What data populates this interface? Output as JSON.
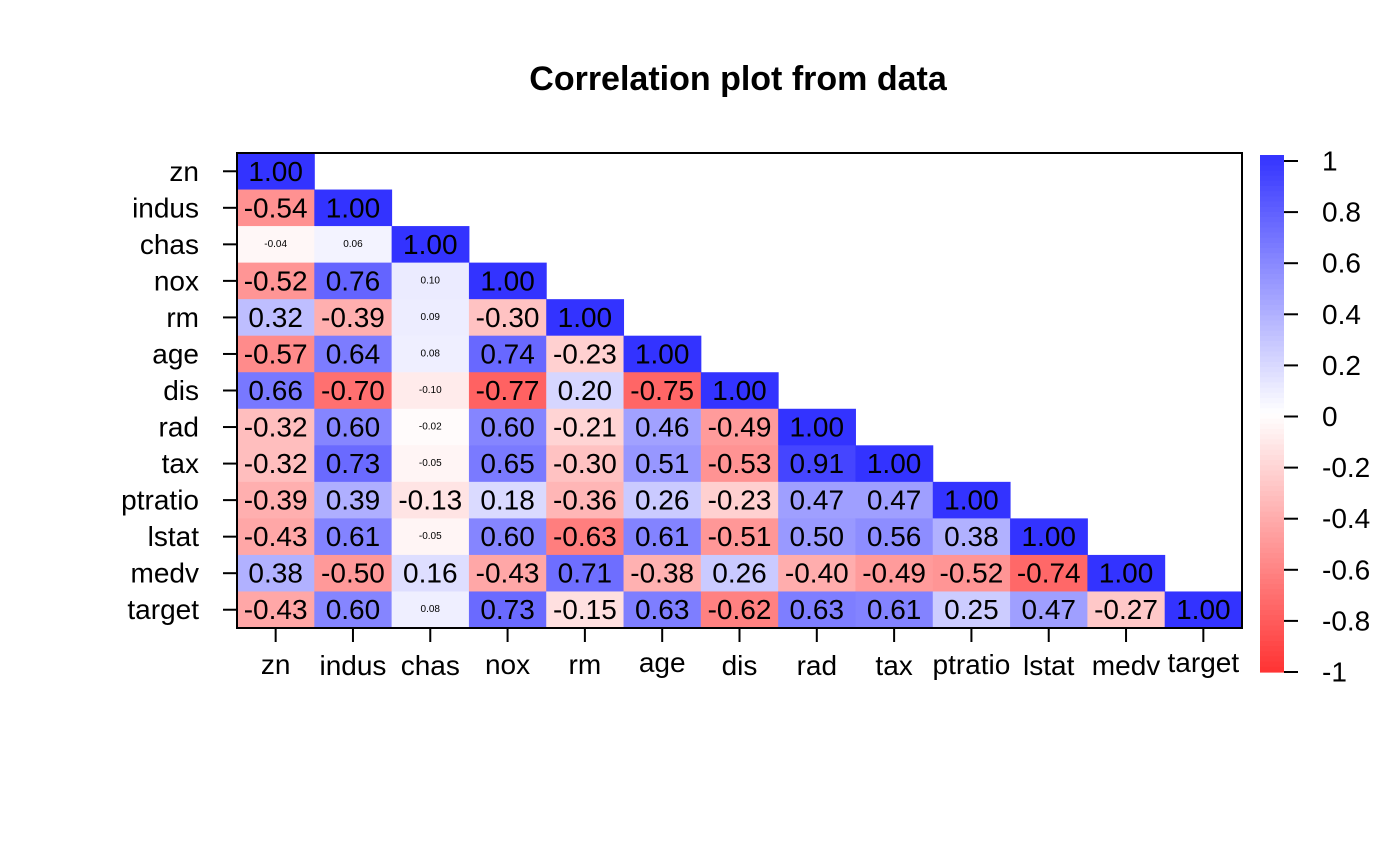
{
  "chart_data": {
    "type": "heatmap",
    "title": "Correlation plot from data",
    "variables": [
      "zn",
      "indus",
      "chas",
      "nox",
      "rm",
      "age",
      "dis",
      "rad",
      "tax",
      "ptratio",
      "lstat",
      "medv",
      "target"
    ],
    "matrix_lower": [
      [
        "1.00"
      ],
      [
        "-0.54",
        "1.00"
      ],
      [
        "-0.04",
        "0.06",
        "1.00"
      ],
      [
        "-0.52",
        "0.76",
        "0.10",
        "1.00"
      ],
      [
        "0.32",
        "-0.39",
        "0.09",
        "-0.30",
        "1.00"
      ],
      [
        "-0.57",
        "0.64",
        "0.08",
        "0.74",
        "-0.23",
        "1.00"
      ],
      [
        "0.66",
        "-0.70",
        "-0.10",
        "-0.77",
        "0.20",
        "-0.75",
        "1.00"
      ],
      [
        "-0.32",
        "0.60",
        "-0.02",
        "0.60",
        "-0.21",
        "0.46",
        "-0.49",
        "1.00"
      ],
      [
        "-0.32",
        "0.73",
        "-0.05",
        "0.65",
        "-0.30",
        "0.51",
        "-0.53",
        "0.91",
        "1.00"
      ],
      [
        "-0.39",
        "0.39",
        "-0.13",
        "0.18",
        "-0.36",
        "0.26",
        "-0.23",
        "0.47",
        "0.47",
        "1.00"
      ],
      [
        "-0.43",
        "0.61",
        "-0.05",
        "0.60",
        "-0.63",
        "0.61",
        "-0.51",
        "0.50",
        "0.56",
        "0.38",
        "1.00"
      ],
      [
        "0.38",
        "-0.50",
        "0.16",
        "-0.43",
        "0.71",
        "-0.38",
        "0.26",
        "-0.40",
        "-0.49",
        "-0.52",
        "-0.74",
        "1.00"
      ],
      [
        "-0.43",
        "0.60",
        "0.08",
        "0.73",
        "-0.15",
        "0.63",
        "-0.62",
        "0.63",
        "0.61",
        "0.25",
        "0.47",
        "-0.27",
        "1.00"
      ]
    ],
    "colorbar": {
      "ticks": [
        "1",
        "0.8",
        "0.6",
        "0.4",
        "0.2",
        "0",
        "-0.2",
        "-0.4",
        "-0.6",
        "-0.8",
        "-1"
      ],
      "range": [
        -1,
        1
      ]
    },
    "colors": {
      "positive": "#3333ff",
      "negative": "#ff3333",
      "neutral": "#ffffff"
    },
    "grid": false,
    "legend": "right"
  }
}
